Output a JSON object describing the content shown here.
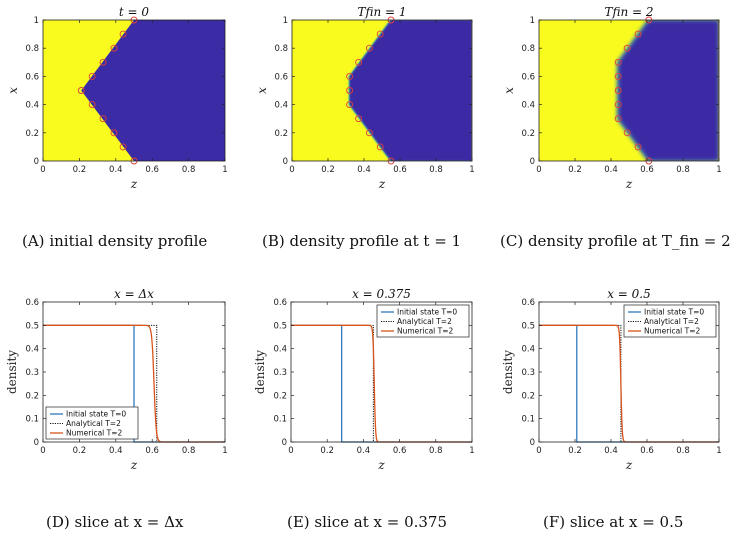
{
  "colors": {
    "yellow": "#f9fb1e",
    "blue": "#3b2ba4",
    "marker": "#e0403a",
    "axis": "#222222",
    "legend_blue": "#1f6fb8",
    "legend_orange": "#d9541a",
    "legend_black": "#111111"
  },
  "captions": [
    {
      "label": "(A)",
      "text": "initial density profile"
    },
    {
      "label": "(B)",
      "text": "density profile at t = 1"
    },
    {
      "label": "(C)",
      "text": "density profile at T_fin = 2"
    },
    {
      "label": "(D)",
      "text": "slice at x = Δx"
    },
    {
      "label": "(E)",
      "text": "slice at x = 0.375"
    },
    {
      "label": "(F)",
      "text": "slice at x = 0.5"
    }
  ],
  "chart_data": [
    {
      "type": "heatmap",
      "title": "t = 0",
      "xlabel": "z",
      "ylabel": "x",
      "xlim": [
        0,
        1
      ],
      "ylim": [
        0,
        1
      ],
      "xticks": [
        "0",
        "0.2",
        "0.4",
        "0.6",
        "0.8",
        "1"
      ],
      "yticks": [
        "0",
        "0.2",
        "0.4",
        "0.6",
        "0.8",
        "1"
      ],
      "front": {
        "z": [
          0.5,
          0.21,
          0.5
        ],
        "x": [
          0,
          0.5,
          1
        ]
      },
      "markers": {
        "z": [
          0.5,
          0.44,
          0.39,
          0.33,
          0.27,
          0.21,
          0.27,
          0.33,
          0.39,
          0.44,
          0.5
        ],
        "x": [
          0,
          0.1,
          0.2,
          0.3,
          0.4,
          0.5,
          0.6,
          0.7,
          0.8,
          0.9,
          1
        ]
      },
      "blur": 0
    },
    {
      "type": "heatmap",
      "title": "T_fin = 1",
      "xlabel": "z",
      "ylabel": "x",
      "xlim": [
        0,
        1
      ],
      "ylim": [
        0,
        1
      ],
      "xticks": [
        "0",
        "0.2",
        "0.4",
        "0.6",
        "0.8",
        "1"
      ],
      "yticks": [
        "0",
        "0.2",
        "0.4",
        "0.6",
        "0.8",
        "1"
      ],
      "front": {
        "z": [
          0.55,
          0.32,
          0.32,
          0.55
        ],
        "x": [
          0,
          0.4,
          0.6,
          1
        ]
      },
      "markers": {
        "z": [
          0.55,
          0.49,
          0.43,
          0.37,
          0.32,
          0.32,
          0.32,
          0.37,
          0.43,
          0.49,
          0.55
        ],
        "x": [
          0,
          0.1,
          0.2,
          0.3,
          0.4,
          0.5,
          0.6,
          0.7,
          0.8,
          0.9,
          1
        ]
      },
      "blur": 0.004
    },
    {
      "type": "heatmap",
      "title": "T_fin = 2",
      "xlabel": "z",
      "ylabel": "x",
      "xlim": [
        0,
        1
      ],
      "ylim": [
        0,
        1
      ],
      "xticks": [
        "0",
        "0.2",
        "0.4",
        "0.6",
        "0.8",
        "1"
      ],
      "yticks": [
        "0",
        "0.2",
        "0.4",
        "0.6",
        "0.8",
        "1"
      ],
      "front": {
        "z": [
          0.61,
          0.44,
          0.44,
          0.61
        ],
        "x": [
          0,
          0.3,
          0.7,
          1
        ]
      },
      "markers": {
        "z": [
          0.61,
          0.55,
          0.49,
          0.44,
          0.44,
          0.44,
          0.44,
          0.44,
          0.49,
          0.55,
          0.61
        ],
        "x": [
          0,
          0.1,
          0.2,
          0.3,
          0.4,
          0.5,
          0.6,
          0.7,
          0.8,
          0.9,
          1
        ]
      },
      "blur": 0.012
    },
    {
      "type": "line",
      "title": "x = Δx",
      "xlabel": "z",
      "ylabel": "density",
      "xlim": [
        0,
        1
      ],
      "ylim": [
        0,
        0.6
      ],
      "xticks": [
        "0",
        "0.2",
        "0.4",
        "0.6",
        "0.8",
        "1"
      ],
      "yticks": [
        "0",
        "0.1",
        "0.2",
        "0.3",
        "0.4",
        "0.5",
        "0.6"
      ],
      "legend_position": "bottom-left",
      "series": [
        {
          "name": "Initial state T=0",
          "style": "solid-blue",
          "step_at": 0.5,
          "value": 0.5
        },
        {
          "name": "Analytical T=2",
          "style": "dotted-black",
          "step_at": 0.625,
          "value": 0.5
        },
        {
          "name": "Numerical T=2",
          "style": "solid-orange",
          "center": 0.61,
          "width": 0.012,
          "value": 0.5
        }
      ]
    },
    {
      "type": "line",
      "title": "x = 0.375",
      "xlabel": "z",
      "ylabel": "density",
      "xlim": [
        0,
        1
      ],
      "ylim": [
        0,
        0.6
      ],
      "xticks": [
        "0",
        "0.2",
        "0.4",
        "0.6",
        "0.8",
        "1"
      ],
      "yticks": [
        "0",
        "0.1",
        "0.2",
        "0.3",
        "0.4",
        "0.5",
        "0.6"
      ],
      "legend_position": "top-right",
      "series": [
        {
          "name": "Initial state T=0",
          "style": "solid-blue",
          "step_at": 0.28,
          "value": 0.5
        },
        {
          "name": "Analytical T=2",
          "style": "dotted-black",
          "step_at": 0.455,
          "value": 0.5
        },
        {
          "name": "Numerical T=2",
          "style": "solid-orange",
          "center": 0.46,
          "width": 0.007,
          "value": 0.5
        }
      ]
    },
    {
      "type": "line",
      "title": "x = 0.5",
      "xlabel": "z",
      "ylabel": "density",
      "xlim": [
        0,
        1
      ],
      "ylim": [
        0,
        0.6
      ],
      "xticks": [
        "0",
        "0.2",
        "0.4",
        "0.6",
        "0.8",
        "1"
      ],
      "yticks": [
        "0",
        "0.1",
        "0.2",
        "0.3",
        "0.4",
        "0.5",
        "0.6"
      ],
      "legend_position": "top-right",
      "series": [
        {
          "name": "Initial state T=0",
          "style": "solid-blue",
          "step_at": 0.21,
          "value": 0.5
        },
        {
          "name": "Analytical T=2",
          "style": "dotted-black",
          "step_at": 0.455,
          "value": 0.5
        },
        {
          "name": "Numerical T=2",
          "style": "solid-orange",
          "center": 0.455,
          "width": 0.007,
          "value": 0.5
        }
      ]
    }
  ]
}
